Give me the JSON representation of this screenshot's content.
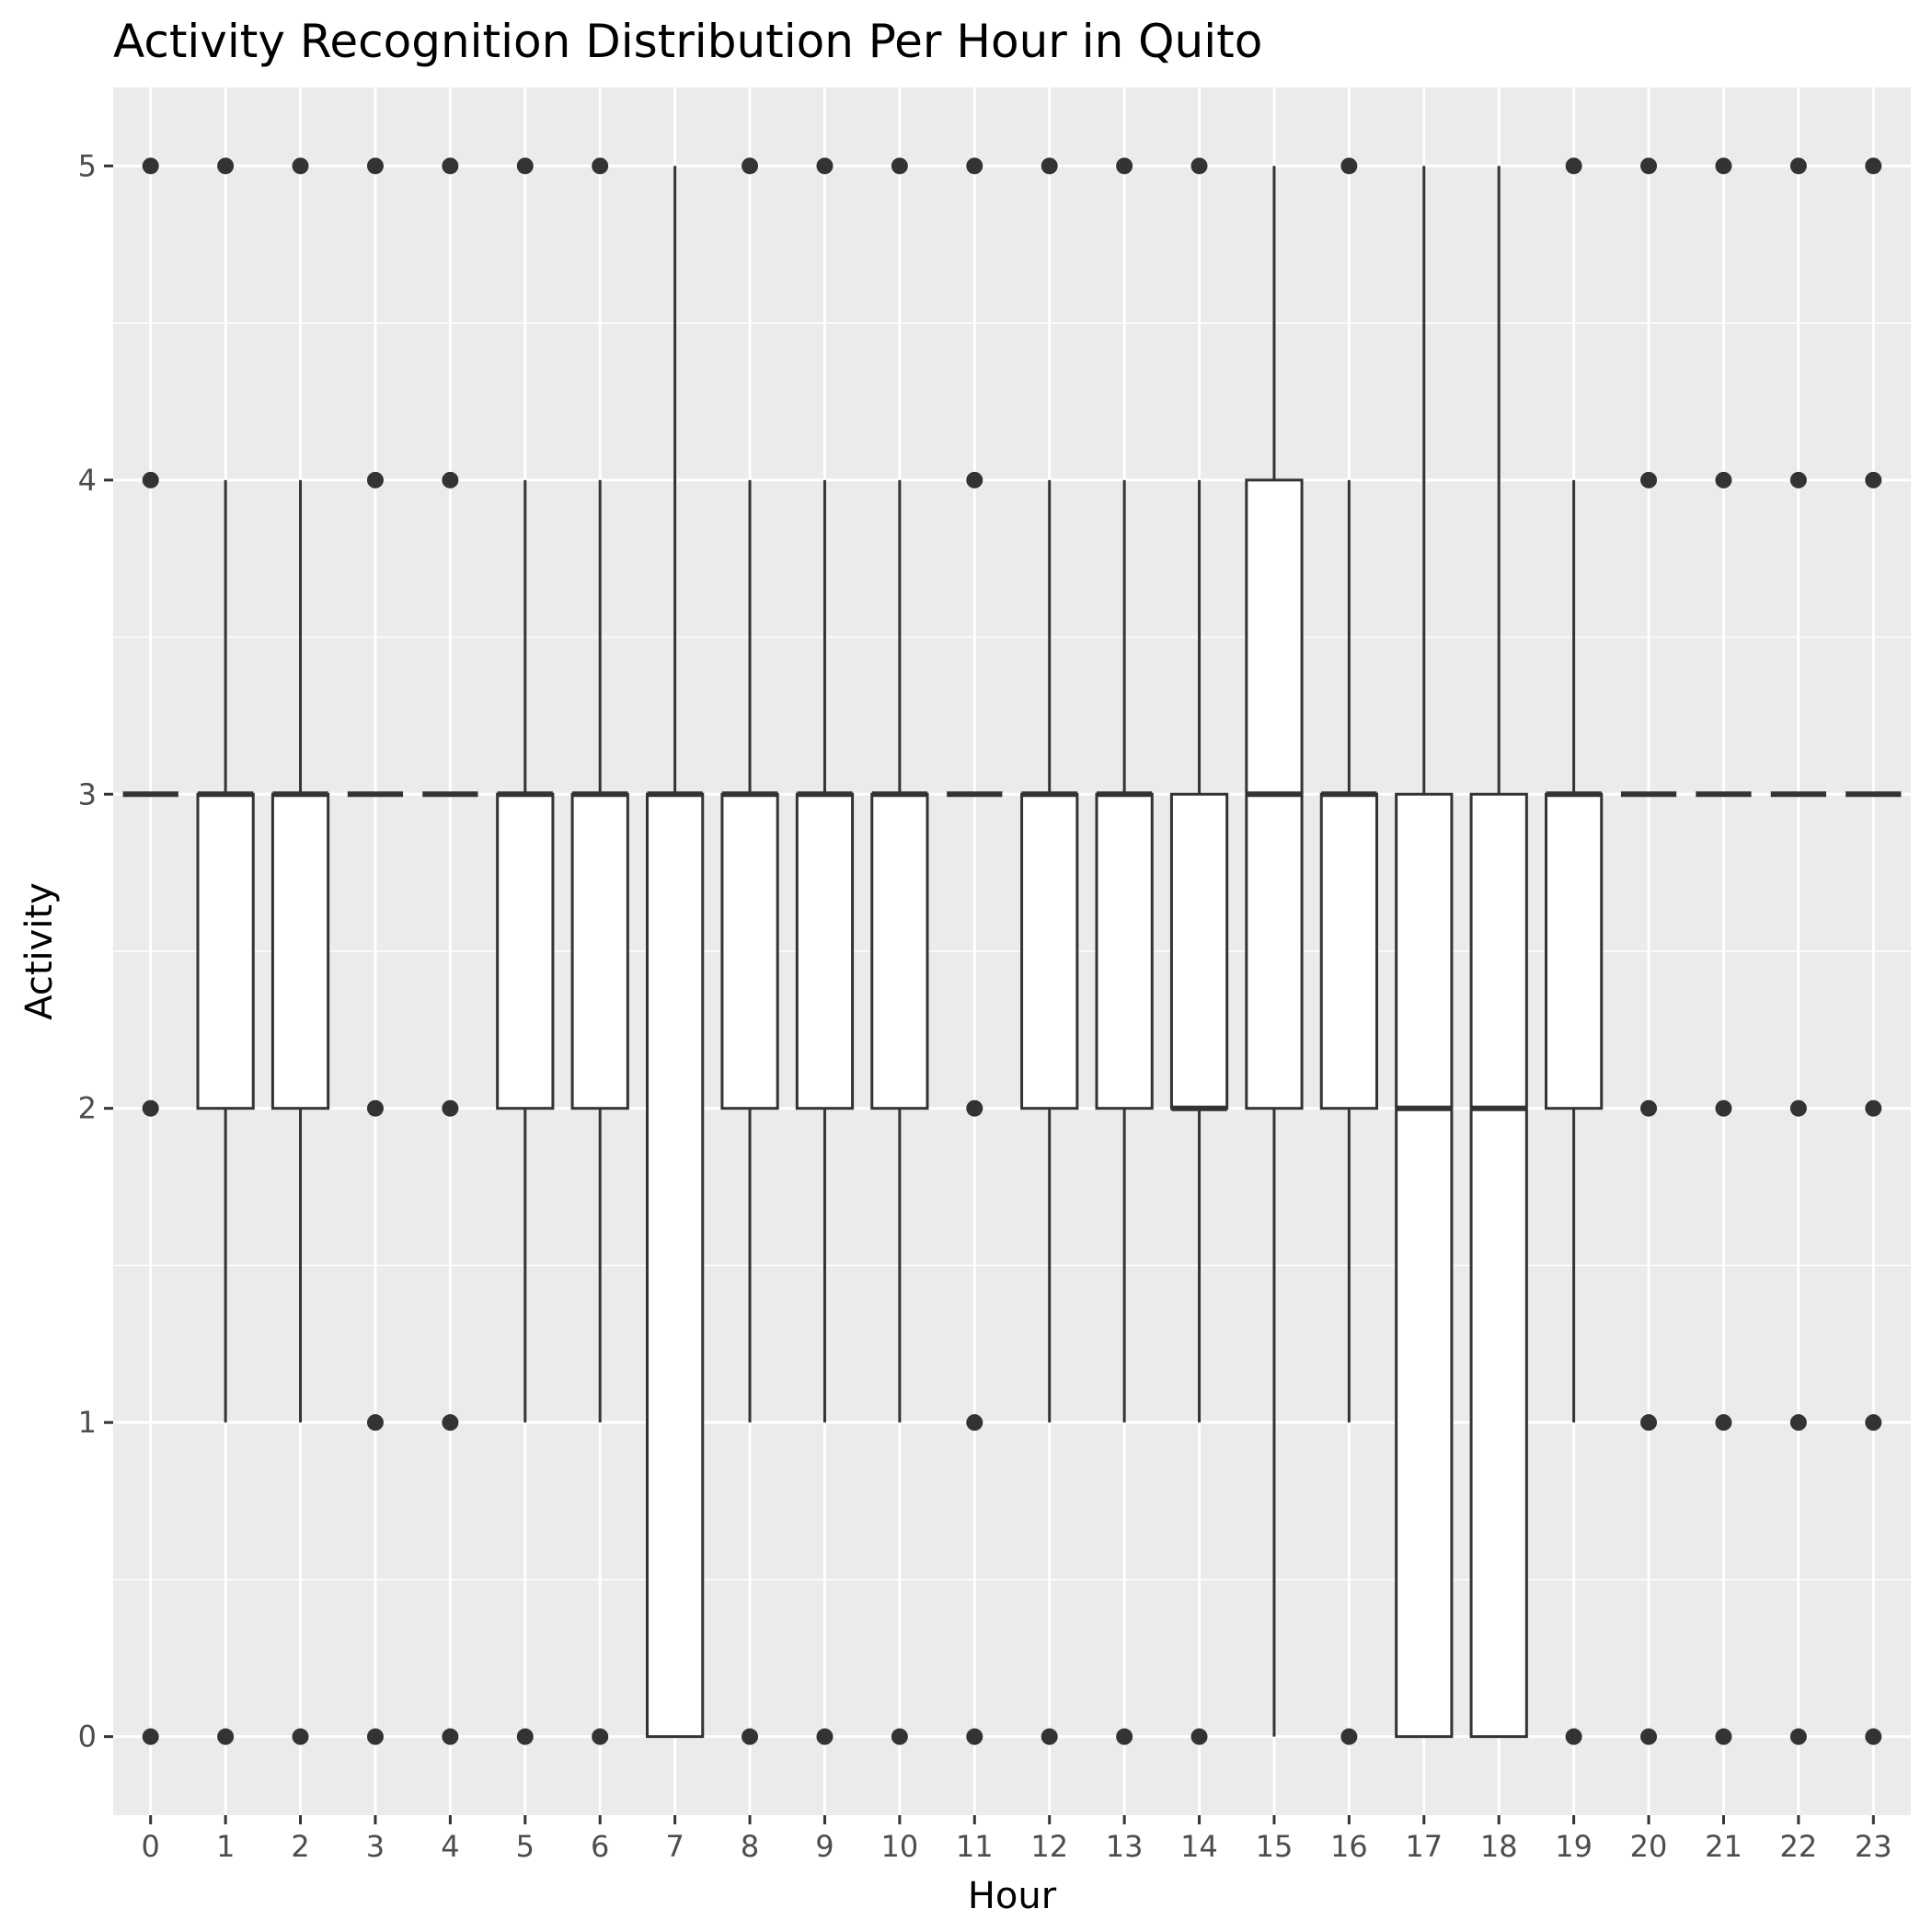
{
  "chart_data": {
    "type": "box",
    "title": "Activity Recognition Distribution Per Hour in Quito",
    "xlabel": "Hour",
    "ylabel": "Activity",
    "categories": [
      "0",
      "1",
      "2",
      "3",
      "4",
      "5",
      "6",
      "7",
      "8",
      "9",
      "10",
      "11",
      "12",
      "13",
      "14",
      "15",
      "16",
      "17",
      "18",
      "19",
      "20",
      "21",
      "22",
      "23"
    ],
    "y_ticks": [
      "0",
      "1",
      "2",
      "3",
      "4",
      "5"
    ],
    "ylim": [
      -0.25,
      5.25
    ],
    "grid": true,
    "boxes": [
      {
        "hour": "0",
        "q1": 3,
        "median": 3,
        "q3": 3,
        "whisker_low": 3,
        "whisker_high": 3,
        "outliers": [
          0,
          2,
          4,
          5
        ]
      },
      {
        "hour": "1",
        "q1": 2,
        "median": 3,
        "q3": 3,
        "whisker_low": 1,
        "whisker_high": 4,
        "outliers": [
          0,
          5
        ]
      },
      {
        "hour": "2",
        "q1": 2,
        "median": 3,
        "q3": 3,
        "whisker_low": 1,
        "whisker_high": 4,
        "outliers": [
          0,
          5
        ]
      },
      {
        "hour": "3",
        "q1": 3,
        "median": 3,
        "q3": 3,
        "whisker_low": 3,
        "whisker_high": 3,
        "outliers": [
          0,
          1,
          2,
          4,
          5
        ]
      },
      {
        "hour": "4",
        "q1": 3,
        "median": 3,
        "q3": 3,
        "whisker_low": 3,
        "whisker_high": 3,
        "outliers": [
          0,
          1,
          2,
          4,
          5
        ]
      },
      {
        "hour": "5",
        "q1": 2,
        "median": 3,
        "q3": 3,
        "whisker_low": 1,
        "whisker_high": 4,
        "outliers": [
          0,
          5
        ]
      },
      {
        "hour": "6",
        "q1": 2,
        "median": 3,
        "q3": 3,
        "whisker_low": 1,
        "whisker_high": 4,
        "outliers": [
          0,
          5
        ]
      },
      {
        "hour": "7",
        "q1": 0,
        "median": 3,
        "q3": 3,
        "whisker_low": 0,
        "whisker_high": 5,
        "outliers": []
      },
      {
        "hour": "8",
        "q1": 2,
        "median": 3,
        "q3": 3,
        "whisker_low": 1,
        "whisker_high": 4,
        "outliers": [
          0,
          5
        ]
      },
      {
        "hour": "9",
        "q1": 2,
        "median": 3,
        "q3": 3,
        "whisker_low": 1,
        "whisker_high": 4,
        "outliers": [
          0,
          5
        ]
      },
      {
        "hour": "10",
        "q1": 2,
        "median": 3,
        "q3": 3,
        "whisker_low": 1,
        "whisker_high": 4,
        "outliers": [
          0,
          5
        ]
      },
      {
        "hour": "11",
        "q1": 3,
        "median": 3,
        "q3": 3,
        "whisker_low": 3,
        "whisker_high": 3,
        "outliers": [
          0,
          1,
          2,
          4,
          5
        ]
      },
      {
        "hour": "12",
        "q1": 2,
        "median": 3,
        "q3": 3,
        "whisker_low": 1,
        "whisker_high": 4,
        "outliers": [
          0,
          5
        ]
      },
      {
        "hour": "13",
        "q1": 2,
        "median": 3,
        "q3": 3,
        "whisker_low": 1,
        "whisker_high": 4,
        "outliers": [
          0,
          5
        ]
      },
      {
        "hour": "14",
        "q1": 2,
        "median": 2,
        "q3": 3,
        "whisker_low": 1,
        "whisker_high": 4,
        "outliers": [
          0,
          5
        ]
      },
      {
        "hour": "15",
        "q1": 2,
        "median": 3,
        "q3": 4,
        "whisker_low": 0,
        "whisker_high": 5,
        "outliers": []
      },
      {
        "hour": "16",
        "q1": 2,
        "median": 3,
        "q3": 3,
        "whisker_low": 1,
        "whisker_high": 4,
        "outliers": [
          0,
          5
        ]
      },
      {
        "hour": "17",
        "q1": 0,
        "median": 2,
        "q3": 3,
        "whisker_low": 0,
        "whisker_high": 5,
        "outliers": []
      },
      {
        "hour": "18",
        "q1": 0,
        "median": 2,
        "q3": 3,
        "whisker_low": 0,
        "whisker_high": 5,
        "outliers": []
      },
      {
        "hour": "19",
        "q1": 2,
        "median": 3,
        "q3": 3,
        "whisker_low": 1,
        "whisker_high": 4,
        "outliers": [
          0,
          5
        ]
      },
      {
        "hour": "20",
        "q1": 3,
        "median": 3,
        "q3": 3,
        "whisker_low": 3,
        "whisker_high": 3,
        "outliers": [
          0,
          1,
          2,
          4,
          5
        ]
      },
      {
        "hour": "21",
        "q1": 3,
        "median": 3,
        "q3": 3,
        "whisker_low": 3,
        "whisker_high": 3,
        "outliers": [
          0,
          1,
          2,
          4,
          5
        ]
      },
      {
        "hour": "22",
        "q1": 3,
        "median": 3,
        "q3": 3,
        "whisker_low": 3,
        "whisker_high": 3,
        "outliers": [
          0,
          1,
          2,
          4,
          5
        ]
      },
      {
        "hour": "23",
        "q1": 3,
        "median": 3,
        "q3": 3,
        "whisker_low": 3,
        "whisker_high": 3,
        "outliers": [
          0,
          1,
          2,
          4,
          5
        ]
      }
    ],
    "colors": {
      "panel_background": "#ebebeb",
      "grid": "#ffffff",
      "box_fill": "#ffffff",
      "box_line": "#333333",
      "outlier": "#333333"
    }
  }
}
